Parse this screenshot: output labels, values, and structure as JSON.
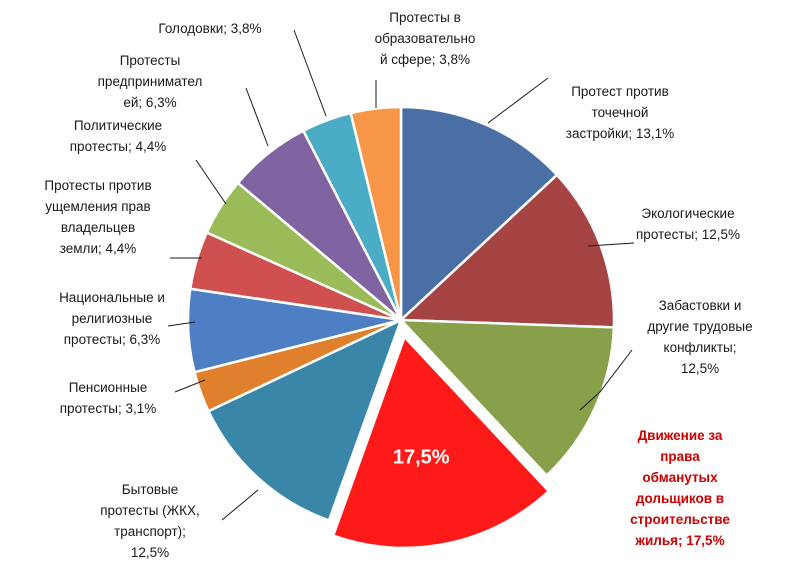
{
  "chart_data": {
    "type": "pie",
    "slices": [
      {
        "label_lines": [
          "Протест против",
          "точечной",
          "застройки; 13,1%"
        ],
        "value": 13.1,
        "color": "#4a6fa5"
      },
      {
        "label_lines": [
          "Экологические",
          "протесты; 12,5%"
        ],
        "value": 12.5,
        "color": "#a54442"
      },
      {
        "label_lines": [
          "Забастовки и",
          "другие трудовые",
          "конфликты;",
          "12,5%"
        ],
        "value": 12.5,
        "color": "#88a04a"
      },
      {
        "label_lines": [
          "Движение за",
          "права",
          "обманутых",
          "дольщиков в",
          "строительстве",
          "жилья; 17,5%"
        ],
        "value": 17.5,
        "color": "#ff1a1a",
        "highlight": true,
        "inner_label": "17,5%"
      },
      {
        "label_lines": [
          "Бытовые",
          "протесты (ЖКХ,",
          "транспорт);",
          "12,5%"
        ],
        "value": 12.5,
        "color": "#3a86a8"
      },
      {
        "label_lines": [
          "Пенсионные",
          "протесты; 3,1%"
        ],
        "value": 3.1,
        "color": "#e0802c"
      },
      {
        "label_lines": [
          "Национальные и",
          "религиозные",
          "протесты; 6,3%"
        ],
        "value": 6.3,
        "color": "#4e7fc4"
      },
      {
        "label_lines": [
          "Протесты против",
          "ущемления прав",
          "владельцев",
          "земли; 4,4%"
        ],
        "value": 4.4,
        "color": "#cf504e"
      },
      {
        "label_lines": [
          "Политические",
          "протесты; 4,4%"
        ],
        "value": 4.4,
        "color": "#9bbb59"
      },
      {
        "label_lines": [
          "Протесты",
          "предпринимател",
          "ей; 6,3%"
        ],
        "value": 6.3,
        "color": "#8064a2"
      },
      {
        "label_lines": [
          "Голодовки; 3,8%"
        ],
        "value": 3.8,
        "color": "#4bacc6"
      },
      {
        "label_lines": [
          "Протесты в",
          "образовательно",
          "й сфере; 3,8%"
        ],
        "value": 3.8,
        "color": "#f79646"
      }
    ]
  }
}
